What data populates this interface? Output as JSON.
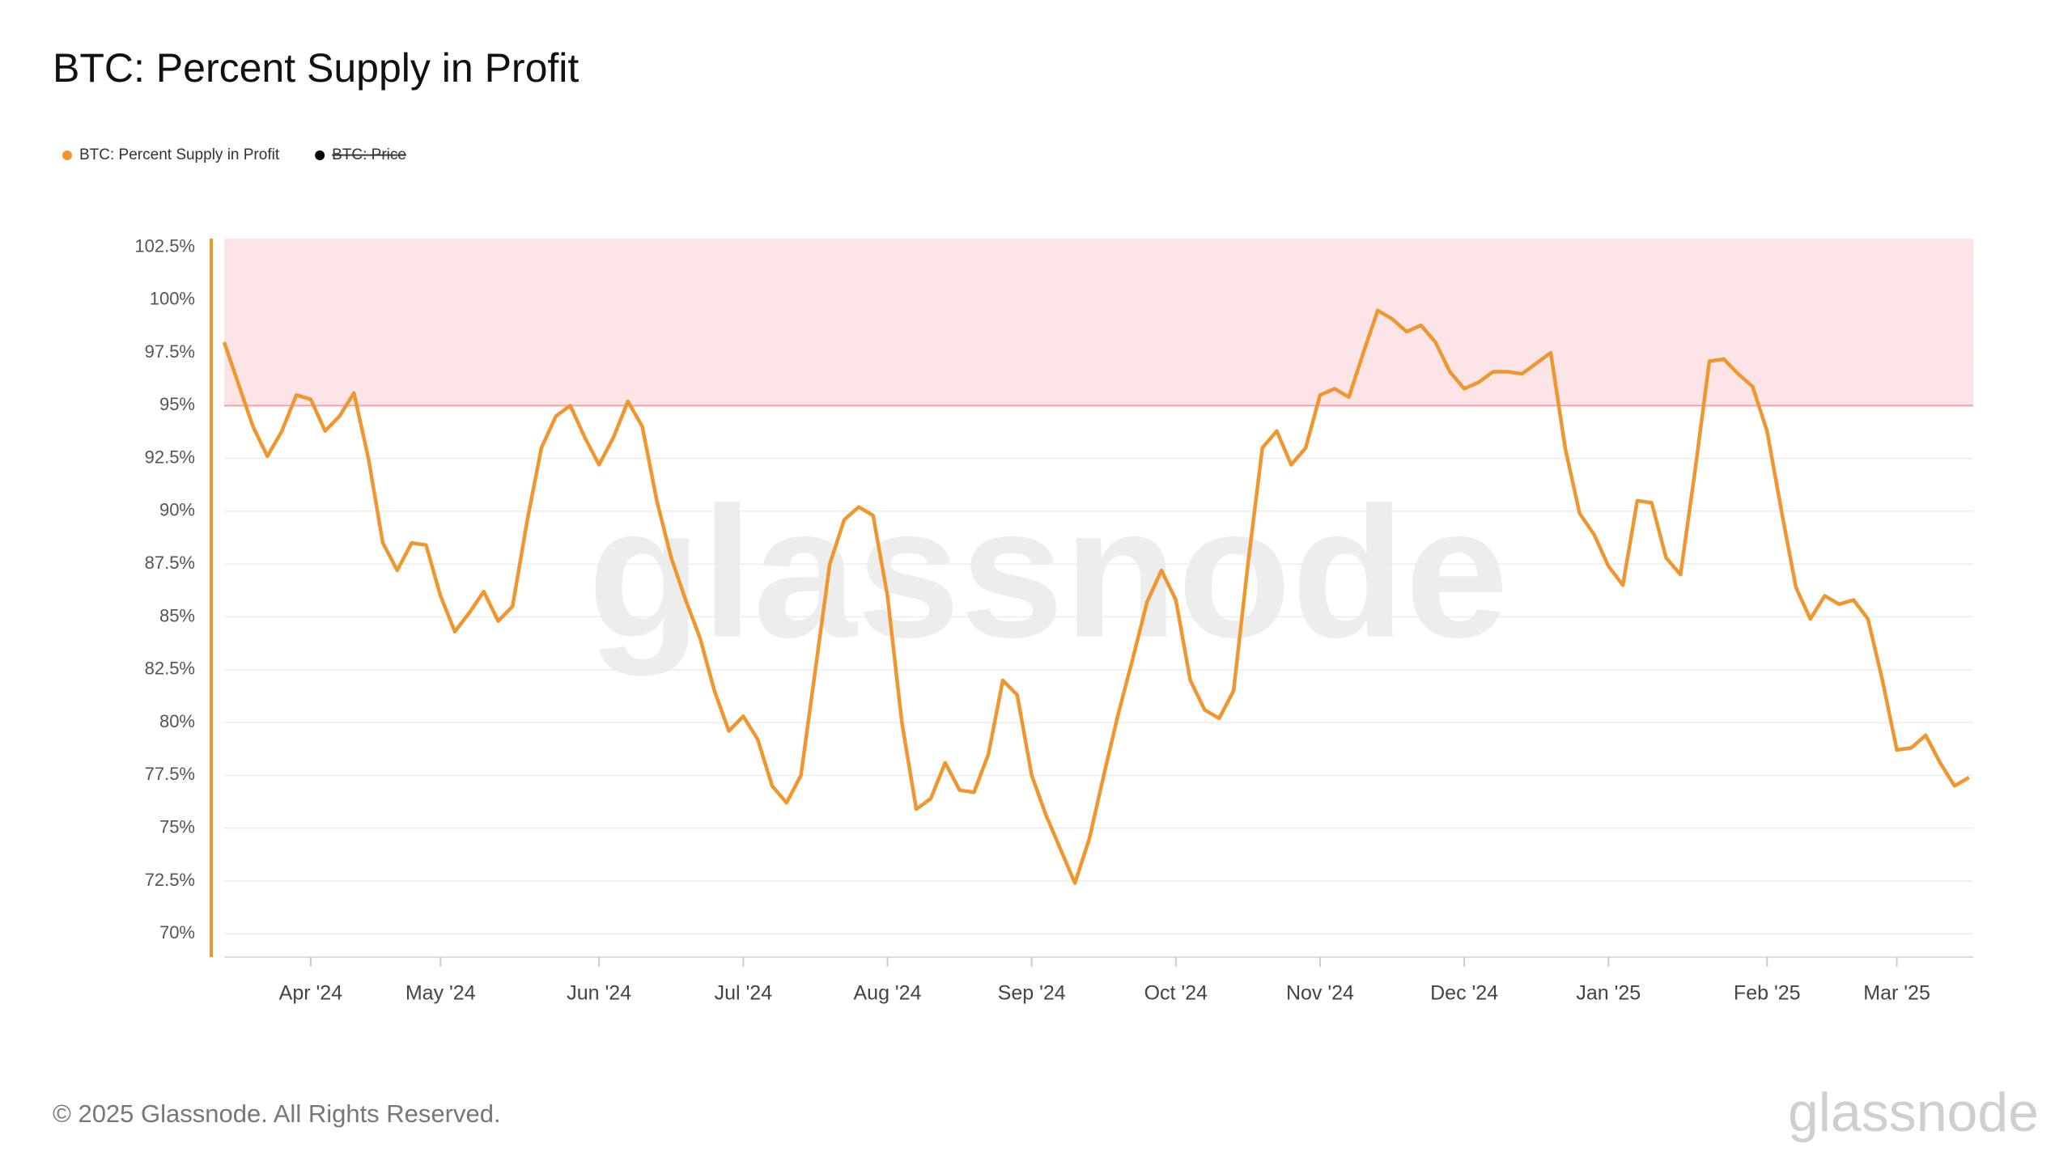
{
  "chart_data": {
    "type": "line",
    "title": "BTC: Percent Supply in Profit",
    "categories": [
      null,
      null,
      null,
      null,
      null,
      null,
      "Apr '24",
      null,
      null,
      null,
      null,
      null,
      null,
      null,
      null,
      "May '24",
      null,
      null,
      null,
      null,
      null,
      null,
      null,
      null,
      null,
      null,
      "Jun '24",
      null,
      null,
      null,
      null,
      null,
      null,
      null,
      null,
      null,
      "Jul '24",
      null,
      null,
      null,
      null,
      null,
      null,
      null,
      null,
      null,
      "Aug '24",
      null,
      null,
      null,
      null,
      null,
      null,
      null,
      null,
      null,
      "Sep '24",
      null,
      null,
      null,
      null,
      null,
      null,
      null,
      null,
      null,
      "Oct '24",
      null,
      null,
      null,
      null,
      null,
      null,
      null,
      null,
      null,
      "Nov '24",
      null,
      null,
      null,
      null,
      null,
      null,
      null,
      null,
      null,
      "Dec '24",
      null,
      null,
      null,
      null,
      null,
      null,
      null,
      null,
      null,
      "Jan '25",
      null,
      null,
      null,
      null,
      null,
      null,
      null,
      null,
      null,
      null,
      "Feb '25",
      null,
      null,
      null,
      null,
      null,
      null,
      null,
      null,
      "Mar '25",
      null,
      null,
      null,
      null,
      null
    ],
    "series": [
      {
        "name": "BTC: Percent Supply in Profit",
        "color": "#f0962e",
        "values": [
          98.0,
          96.0,
          94.0,
          92.6,
          93.8,
          95.5,
          95.3,
          93.8,
          94.5,
          95.6,
          92.5,
          88.5,
          87.2,
          88.5,
          88.4,
          86.0,
          84.3,
          85.2,
          86.2,
          84.8,
          85.5,
          89.5,
          93.0,
          94.5,
          95.0,
          93.5,
          92.2,
          93.5,
          95.2,
          94.0,
          90.5,
          87.8,
          85.8,
          84.0,
          81.5,
          79.6,
          80.3,
          79.2,
          77.0,
          76.2,
          77.5,
          82.5,
          87.5,
          89.6,
          90.2,
          89.8,
          86.0,
          80.0,
          75.9,
          76.4,
          78.1,
          76.8,
          76.7,
          78.5,
          82.0,
          81.3,
          77.5,
          75.6,
          74.0,
          72.4,
          74.5,
          77.5,
          80.4,
          83.0,
          85.7,
          87.2,
          85.8,
          82.0,
          80.6,
          80.2,
          81.5,
          87.5,
          93.0,
          93.8,
          92.2,
          93.0,
          95.5,
          95.8,
          95.4,
          97.5,
          99.5,
          99.1,
          98.5,
          98.8,
          98.0,
          96.6,
          95.8,
          96.1,
          96.6,
          96.6,
          96.5,
          97.0,
          97.5,
          93.0,
          89.9,
          88.9,
          87.4,
          86.5,
          90.5,
          90.4,
          87.8,
          87.0,
          91.9,
          97.1,
          97.2,
          96.5,
          95.9,
          93.8,
          90.0,
          86.4,
          84.9,
          86.0,
          85.6,
          85.8,
          84.9,
          82.0,
          78.7,
          78.8,
          79.4,
          78.1,
          77.0,
          77.4
        ]
      }
    ],
    "hidden_series": [
      {
        "name": "BTC: Price",
        "color": "#000000"
      }
    ],
    "threshold_band": {
      "from": 95,
      "to": 102.9,
      "color": "#fde4e7",
      "line_color": "#f4a0a8"
    },
    "ylim": [
      68.9,
      102.9
    ],
    "yticks": [
      {
        "value": 70,
        "label": "70%"
      },
      {
        "value": 72.5,
        "label": "72.5%"
      },
      {
        "value": 75,
        "label": "75%"
      },
      {
        "value": 77.5,
        "label": "77.5%"
      },
      {
        "value": 80,
        "label": "80%"
      },
      {
        "value": 82.5,
        "label": "82.5%"
      },
      {
        "value": 85,
        "label": "85%"
      },
      {
        "value": 87.5,
        "label": "87.5%"
      },
      {
        "value": 90,
        "label": "90%"
      },
      {
        "value": 92.5,
        "label": "92.5%"
      },
      {
        "value": 95,
        "label": "95%"
      },
      {
        "value": 97.5,
        "label": "97.5%"
      },
      {
        "value": 100,
        "label": "100%"
      },
      {
        "value": 102.5,
        "label": "102.5%"
      }
    ],
    "grid": true,
    "watermark": "glassnode"
  },
  "footer": {
    "copyright": "© 2025 Glassnode. All Rights Reserved.",
    "logo": "glassnode"
  }
}
